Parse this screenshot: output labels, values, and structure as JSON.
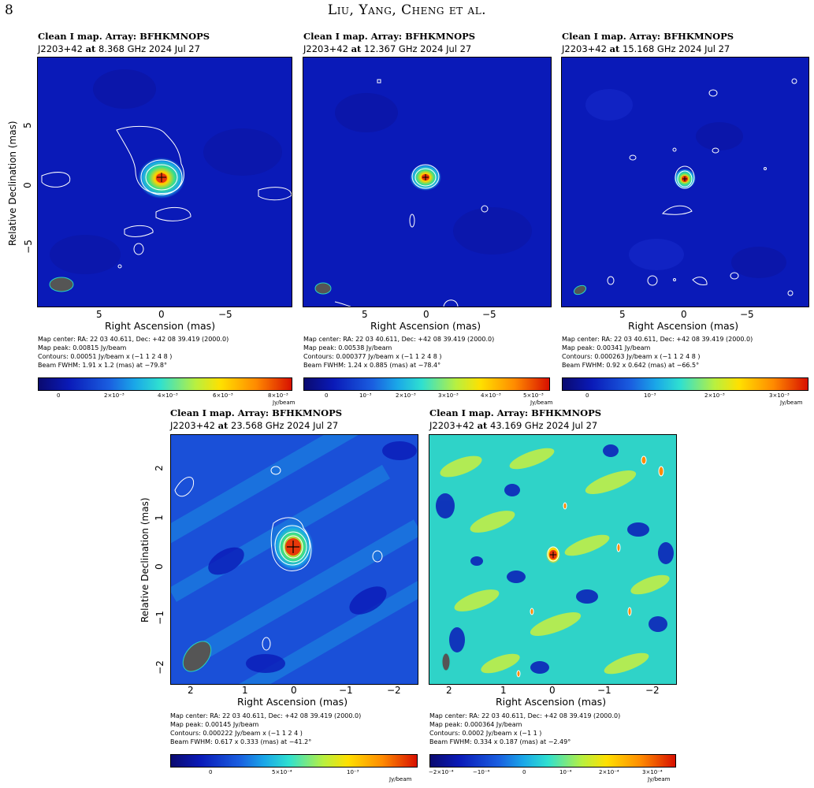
{
  "page_header": {
    "page_number": "8",
    "authors": "Liu, Yang, Cheng et al."
  },
  "colors": {
    "map_low": "#0a1ab8",
    "map_mid": "#1aa7e8",
    "map_high": "#e8380a",
    "contour": "#ffffff",
    "beam_fill": "#555555",
    "beam_edge": "#27d2c0"
  },
  "panels": [
    {
      "title": "Clean I map.  Array:  BFHKMNOPS",
      "source_line": "J2203+42",
      "at": "at",
      "freq_date": "8.368 GHz 2024 Jul 27",
      "xticks": [
        "5",
        "0",
        "−5"
      ],
      "yticks": [
        "5",
        "0",
        "−5"
      ],
      "xlabel": "Right Ascension   (mas)",
      "ylabel": "Relative Declination   (mas)",
      "map_center": "Map center:  RA: 22 03 40.611,   Dec: +42 08 39.419 (2000.0)",
      "map_peak": "Map peak: 0.00815 Jy/beam",
      "contours": "Contours: 0.00051 Jy/beam x (−1 1 2 4 8 )",
      "beam": "Beam FWHM: 1.91 x 1.2 (mas) at −79.8°",
      "cbar_ticks": [
        "0",
        "2×10⁻³",
        "4×10⁻³",
        "6×10⁻³",
        "8×10⁻³"
      ],
      "cbar_unit": "Jy/beam"
    },
    {
      "title": "Clean I map.  Array:  BFHKMNOPS",
      "source_line": "J2203+42",
      "at": "at",
      "freq_date": "12.367 GHz 2024 Jul 27",
      "xticks": [
        "5",
        "0",
        "−5"
      ],
      "xlabel": "Right Ascension   (mas)",
      "map_center": "Map center:  RA: 22 03 40.611,   Dec: +42 08 39.419 (2000.0)",
      "map_peak": "Map peak: 0.00538 Jy/beam",
      "contours": "Contours: 0.000377 Jy/beam x (−1 1 2 4 8 )",
      "beam": "Beam FWHM: 1.24 x 0.885 (mas) at −78.4°",
      "cbar_ticks": [
        "0",
        "10⁻³",
        "2×10⁻³",
        "3×10⁻³",
        "4×10⁻³",
        "5×10⁻³"
      ],
      "cbar_unit": "Jy/beam"
    },
    {
      "title": "Clean I map.  Array:  BFHKMNOPS",
      "source_line": "J2203+42",
      "at": "at",
      "freq_date": "15.168 GHz 2024 Jul 27",
      "xticks": [
        "5",
        "0",
        "−5"
      ],
      "xlabel": "Right Ascension   (mas)",
      "map_center": "Map center:  RA: 22 03 40.611,   Dec: +42 08 39.419 (2000.0)",
      "map_peak": "Map peak: 0.00341 Jy/beam",
      "contours": "Contours: 0.000263 Jy/beam x (−1 1 2 4 8 )",
      "beam": "Beam FWHM: 0.92 x 0.642 (mas) at −66.5°",
      "cbar_ticks": [
        "0",
        "10⁻³",
        "2×10⁻³",
        "3×10⁻³"
      ],
      "cbar_unit": "Jy/beam"
    },
    {
      "title": "Clean I map.  Array:  BFHKMNOPS",
      "source_line": "J2203+42",
      "at": "at",
      "freq_date": "23.568 GHz 2024 Jul 27",
      "xticks": [
        "2",
        "1",
        "0",
        "−1",
        "−2"
      ],
      "yticks": [
        "2",
        "1",
        "0",
        "−1",
        "−2"
      ],
      "xlabel": "Right Ascension   (mas)",
      "ylabel": "Relative Declination   (mas)",
      "map_center": "Map center:  RA: 22 03 40.611,   Dec: +42 08 39.419 (2000.0)",
      "map_peak": "Map peak: 0.00145 Jy/beam",
      "contours": "Contours: 0.000222 Jy/beam x (−1 1 2 4 )",
      "beam": "Beam FWHM: 0.617 x 0.333 (mas) at −41.2°",
      "cbar_ticks": [
        "0",
        "5×10⁻⁴",
        "10⁻³"
      ],
      "cbar_unit": "Jy/beam"
    },
    {
      "title": "Clean I map.  Array:  BFHKMNOPS",
      "source_line": "J2203+42",
      "at": "at",
      "freq_date": "43.169 GHz 2024 Jul 27",
      "xticks": [
        "2",
        "1",
        "0",
        "−1",
        "−2"
      ],
      "xlabel": "Right Ascension   (mas)",
      "map_center": "Map center:  RA: 22 03 40.611,   Dec: +42 08 39.419 (2000.0)",
      "map_peak": "Map peak: 0.000364 Jy/beam",
      "contours": "Contours: 0.0002 Jy/beam x (−1 1 )",
      "beam": "Beam FWHM: 0.334 x 0.187 (mas) at −2.49°",
      "cbar_ticks": [
        "−2×10⁻⁴",
        "−10⁻⁴",
        "0",
        "10⁻⁴",
        "2×10⁻⁴",
        "3×10⁻⁴"
      ],
      "cbar_unit": "Jy/beam"
    }
  ]
}
